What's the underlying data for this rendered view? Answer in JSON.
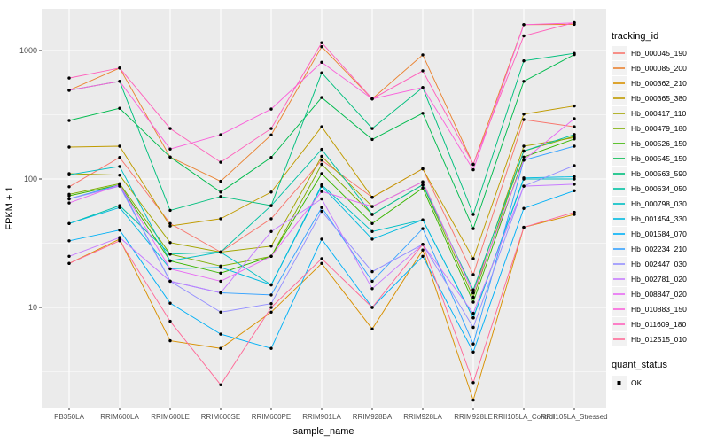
{
  "chart_data": {
    "type": "line",
    "title": "",
    "xlabel": "sample_name",
    "ylabel": "FPKM + 1",
    "y_scale": "log10",
    "ylim": [
      1.67,
      2090
    ],
    "y_ticks": [
      10,
      100,
      1000
    ],
    "y_minor": [
      3.162,
      31.62,
      316.2
    ],
    "grid": true,
    "panel_bg": "#EBEBEB",
    "grid_color": "#FFFFFF",
    "point_color": "#000000",
    "axis_text_color": "#4D4D4D",
    "legend_position": "right",
    "legend_key_bg": "#F2F2F2",
    "categories": [
      "PB350LA",
      "RRIM600LA",
      "RRIM600LE",
      "RRIM600SE",
      "RRIM600PE",
      "RRIM901LA",
      "RRIM928BA",
      "RRIM928LA",
      "RRIM928LE",
      "RRII105LA_Control",
      "RRII105LA_Stressed"
    ],
    "series": [
      {
        "name": "Hb_000045_190",
        "color": "#F8766D",
        "values": [
          87,
          147,
          45,
          27,
          49,
          140,
          72,
          120,
          18,
          290,
          255
        ]
      },
      {
        "name": "Hb_000085_200",
        "color": "#EA8331",
        "values": [
          490,
          730,
          148,
          96,
          220,
          1070,
          420,
          925,
          130,
          1590,
          1600
        ]
      },
      {
        "name": "Hb_000362_210",
        "color": "#D89000",
        "values": [
          22,
          34,
          5.5,
          4.8,
          9.2,
          22,
          6.8,
          28,
          1.9,
          42,
          53
        ]
      },
      {
        "name": "Hb_000365_380",
        "color": "#C09B00",
        "values": [
          177,
          180,
          43,
          49,
          79,
          255,
          72,
          120,
          24,
          320,
          370
        ]
      },
      {
        "name": "Hb_000417_110",
        "color": "#A3A500",
        "values": [
          110,
          107,
          32,
          27,
          30,
          150,
          61,
          95,
          13,
          180,
          210
        ]
      },
      {
        "name": "Hb_000479_180",
        "color": "#7CAE00",
        "values": [
          76,
          92,
          26,
          21,
          25,
          130,
          53,
          90,
          12,
          165,
          215
        ]
      },
      {
        "name": "Hb_000526_150",
        "color": "#39B600",
        "values": [
          74,
          90,
          23,
          18.5,
          25,
          110,
          45,
          85,
          11,
          148,
          205
        ]
      },
      {
        "name": "Hb_000545_150",
        "color": "#00BB4E",
        "values": [
          285,
          355,
          148,
          79,
          147,
          430,
          203,
          325,
          41,
          575,
          930
        ]
      },
      {
        "name": "Hb_000563_590",
        "color": "#00BF7D",
        "values": [
          490,
          575,
          57,
          73,
          62,
          670,
          247,
          515,
          53,
          830,
          950
        ]
      },
      {
        "name": "Hb_000634_050",
        "color": "#00C1A3",
        "values": [
          45,
          62,
          26,
          27,
          62,
          170,
          53,
          90,
          13.7,
          165,
          222
        ]
      },
      {
        "name": "Hb_000798_030",
        "color": "#00BFC4",
        "values": [
          108,
          125,
          23,
          27,
          15,
          90,
          39,
          48,
          8.3,
          100,
          100
        ]
      },
      {
        "name": "Hb_001454_330",
        "color": "#00BAE0",
        "values": [
          45,
          60,
          20,
          20.5,
          15,
          88,
          34,
          48,
          8.3,
          102,
          104
        ]
      },
      {
        "name": "Hb_001584_070",
        "color": "#00B0F6",
        "values": [
          33,
          40,
          10.8,
          6.2,
          4.8,
          34,
          10,
          25,
          4.5,
          59,
          81
        ]
      },
      {
        "name": "Hb_002234_210",
        "color": "#35A2FF",
        "values": [
          70,
          90,
          16,
          13,
          12.5,
          60,
          16,
          41,
          5.2,
          140,
          180
        ]
      },
      {
        "name": "Hb_002447_030",
        "color": "#9590FF",
        "values": [
          70,
          88,
          16,
          9.2,
          10.7,
          56,
          19,
          31,
          7,
          88,
          127
        ]
      },
      {
        "name": "Hb_002781_020",
        "color": "#C77CFF",
        "values": [
          25,
          35,
          16,
          13,
          39,
          70,
          14,
          31,
          9,
          88,
          91
        ]
      },
      {
        "name": "Hb_008847_020",
        "color": "#E76BF3",
        "values": [
          65,
          90,
          20,
          16,
          25,
          80,
          61,
          95,
          13,
          140,
          295
        ]
      },
      {
        "name": "Hb_010883_150",
        "color": "#FA62DB",
        "values": [
          490,
          575,
          171,
          221,
          350,
          810,
          420,
          515,
          118,
          1590,
          1640
        ]
      },
      {
        "name": "Hb_011609_180",
        "color": "#FF62BC",
        "values": [
          610,
          730,
          247,
          135,
          247,
          1150,
          420,
          695,
          130,
          1300,
          1650
        ]
      },
      {
        "name": "Hb_012515_010",
        "color": "#FF6A98",
        "values": [
          22,
          33,
          7.8,
          2.5,
          10,
          24,
          10,
          31,
          2.6,
          42,
          55
        ]
      }
    ],
    "legend": {
      "tracking_title": "tracking_id",
      "quant_title": "quant_status",
      "quant_items": [
        "OK"
      ]
    }
  }
}
